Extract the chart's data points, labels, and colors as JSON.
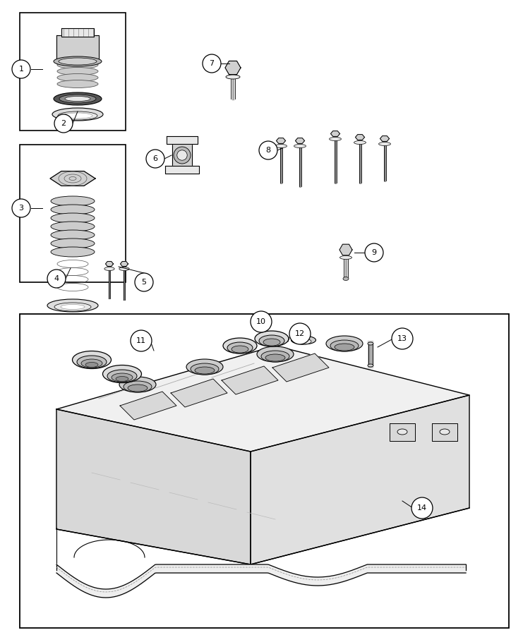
{
  "fig_width": 7.41,
  "fig_height": 9.0,
  "dpi": 100,
  "background_color": "#ffffff",
  "image_b64": ""
}
